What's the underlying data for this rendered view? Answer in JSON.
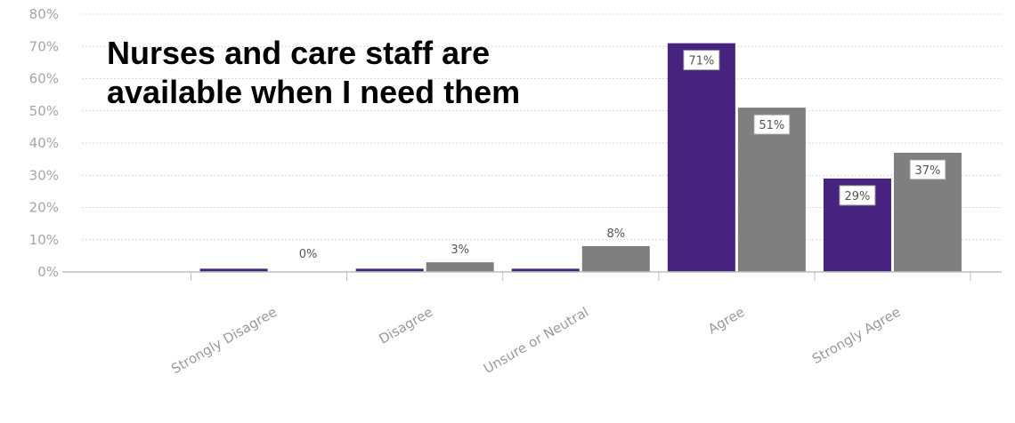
{
  "chart_data": {
    "type": "bar",
    "title_lines": [
      "Nurses and care staff are",
      "available when I need them"
    ],
    "categories": [
      "Strongly Disagree",
      "Disagree",
      "Unsure or Neutral",
      "Agree",
      "Strongly Agree"
    ],
    "series": [
      {
        "values": [
          1,
          1,
          1,
          71,
          29
        ],
        "color": "#45237f"
      },
      {
        "values": [
          0,
          3,
          8,
          51,
          37
        ],
        "color": "#7f7f7f"
      }
    ],
    "data_labels": [
      {
        "category": "Strongly Disagree",
        "text": "0%"
      },
      {
        "category": "Disagree",
        "text": "3%"
      },
      {
        "category": "Unsure or Neutral",
        "text": "8%"
      },
      {
        "category": "Agree",
        "text": "71%"
      },
      {
        "category": "Agree",
        "text": "51%"
      },
      {
        "category": "Strongly Agree",
        "text": "29%"
      },
      {
        "category": "Strongly Agree",
        "text": "37%"
      }
    ],
    "ylim": [
      0,
      80
    ],
    "yticks": [
      "0%",
      "10%",
      "20%",
      "30%",
      "40%",
      "50%",
      "60%",
      "70%",
      "80%"
    ],
    "grid": true,
    "xlabel": "",
    "ylabel": ""
  }
}
